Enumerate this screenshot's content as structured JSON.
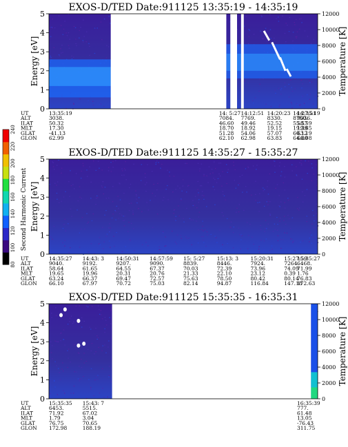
{
  "colors": {
    "background_low": "#3a1e9a",
    "background_mid": "#2f3fd0",
    "band_high": "#1a6cff",
    "band_peak": "#2f98ff",
    "data_gap": "#ffffff",
    "colorbar": [
      "#000000",
      "#3a0a80",
      "#2a28c8",
      "#1060ff",
      "#10b0f0",
      "#10d8b0",
      "#20e040",
      "#c8e010",
      "#f0c000",
      "#f06000",
      "#f00000"
    ]
  },
  "colorbar": {
    "label": "Second Harmonic Current",
    "ticks": [
      "80",
      "100",
      "120",
      "140",
      "160",
      "180",
      "200",
      "220",
      "240"
    ]
  },
  "chart_data": [
    {
      "type": "heatmap",
      "title": "EXOS-D/TED   Date:911125   13:35:19 - 14:35:19",
      "ylabel": "Energy [eV]",
      "ylabel_right": "Temperature [K]",
      "ylim": [
        0,
        5
      ],
      "yticks": [
        "0",
        "1",
        "2",
        "3",
        "4",
        "5"
      ],
      "ylim_right": [
        0,
        12000
      ],
      "yticks_right": [
        "0",
        "2000",
        "4000",
        "6000",
        "8000",
        "10000",
        "12000"
      ],
      "data_gaps": [
        [
          0.23,
          0.66
        ],
        [
          0.675,
          0.7
        ],
        [
          0.715,
          0.725
        ]
      ],
      "band": {
        "from": [
          0,
          2.0
        ],
        "to": [
          1,
          2.0
        ]
      },
      "orbit_rows": [
        {
          "label": "UT",
          "values": [
            "13:35:19",
            "14: 5:27",
            "14:12:51",
            "14:20:23",
            "14:27:51",
            "14:35:19"
          ]
        },
        {
          "label": "ALT",
          "values": [
            "3038.",
            "7084.",
            "7769.",
            "8330.",
            "8750.",
            "9036."
          ]
        },
        {
          "label": "ILAT",
          "values": [
            "50.32",
            "46.60",
            "49.46",
            "52.52",
            "55.57",
            "58.59"
          ]
        },
        {
          "label": "MLT",
          "values": [
            "17.30",
            "18.70",
            "18.92",
            "19.15",
            "19.39",
            "19.65"
          ]
        },
        {
          "label": "GLAT",
          "values": [
            "-41.13",
            "51.28",
            "54.06",
            "57.07",
            "60.12",
            "63.19"
          ]
        },
        {
          "label": "GLON",
          "values": [
            "62.99",
            "62.10",
            "62.98",
            "63.83",
            "64.80",
            "66.08"
          ]
        }
      ],
      "orbit_columns": [
        0,
        0.633,
        0.714,
        0.812,
        0.908,
        1.0
      ]
    },
    {
      "type": "heatmap",
      "title": "EXOS-D/TED   Date:911125   14:35:27 - 15:35:27",
      "ylabel": "Energy [eV]",
      "ylabel_right": "Temperature [K]",
      "ylim": [
        0,
        5
      ],
      "yticks": [
        "0",
        "1",
        "2",
        "3",
        "4",
        "5"
      ],
      "ylim_right": [
        0,
        12000
      ],
      "yticks_right": [
        "0",
        "2000",
        "4000",
        "6000",
        "8000",
        "10000",
        "12000"
      ],
      "data_gaps": [],
      "orbit_rows": [
        {
          "label": "UT",
          "values": [
            "14:35:27",
            "14:43: 3",
            "14:50:31",
            "14:57:59",
            "15: 5:27",
            "15:13: 3",
            "15:20:31",
            "15:27:59",
            "15:35:27"
          ]
        },
        {
          "label": "ALT",
          "values": [
            "9040.",
            "9192.",
            "9207.",
            "9090.",
            "8839.",
            "8446.",
            "7924.",
            "7264.",
            "6468."
          ]
        },
        {
          "label": "ILAT",
          "values": [
            "58.64",
            "61.65",
            "64.55",
            "67.37",
            "70.03",
            "72.39",
            "73.96",
            "74.09",
            "71.99"
          ]
        },
        {
          "label": "MLT",
          "values": [
            "19.65",
            "19.96",
            "20.31",
            "20.76",
            "21.33",
            "22.10",
            "23.12",
            "0.39",
            "1.76"
          ]
        },
        {
          "label": "GLAT",
          "values": [
            "63.24",
            "66.37",
            "69.47",
            "72.57",
            "75.63",
            "78.50",
            "80.42",
            "80.14",
            "76.83"
          ]
        },
        {
          "label": "GLON",
          "values": [
            "66.10",
            "67.97",
            "70.72",
            "75.03",
            "82.14",
            "94.87",
            "116.84",
            "147.18",
            "172.63"
          ]
        }
      ],
      "orbit_columns": [
        0,
        0.125,
        0.25,
        0.375,
        0.5,
        0.625,
        0.75,
        0.875,
        1.0
      ]
    },
    {
      "type": "heatmap",
      "title": "EXOS-D/TED   Date:911125   15:35:35 - 16:35:31",
      "ylabel": "Energy [eV]",
      "ylabel_right": "Temperature [K]",
      "ylim": [
        0,
        5
      ],
      "yticks": [
        "0",
        "1",
        "2",
        "3",
        "4",
        "5"
      ],
      "ylim_right": [
        0,
        12000
      ],
      "yticks_right": [
        "0",
        "2000",
        "4000",
        "6000",
        "8000",
        "10000",
        "12000"
      ],
      "data_gaps": [
        [
          0.235,
          0.975
        ]
      ],
      "orbit_rows": [
        {
          "label": "UT",
          "values": [
            "15:35:35",
            "15:43: 7",
            "16:35:39"
          ]
        },
        {
          "label": "ALT",
          "values": [
            "6453.",
            "5515.",
            "777."
          ]
        },
        {
          "label": "ILAT",
          "values": [
            "71.92",
            "67.02",
            "61.48"
          ]
        },
        {
          "label": "MLT",
          "values": [
            "1.79",
            "3.04",
            "13.05"
          ]
        },
        {
          "label": "GLAT",
          "values": [
            "76.75",
            "70.65",
            "-76.43"
          ]
        },
        {
          "label": "GLON",
          "values": [
            "172.98",
            "188.19",
            "311.75"
          ]
        }
      ],
      "orbit_columns": [
        0,
        0.125,
        0.935
      ]
    }
  ]
}
